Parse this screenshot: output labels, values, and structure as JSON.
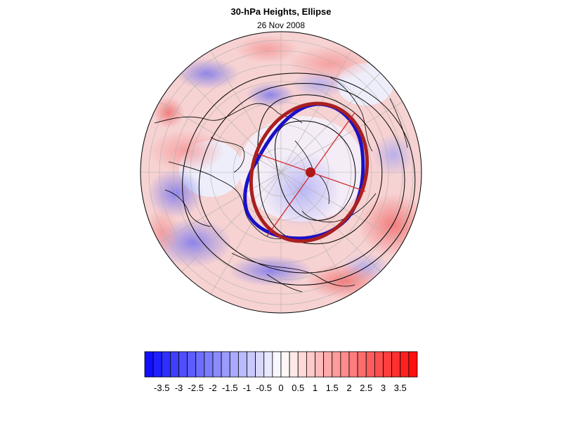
{
  "header": {
    "title": "30-hPa Heights, Ellipse",
    "date": "26 Nov 2008"
  },
  "colorbar": {
    "min": -4,
    "max": 4,
    "step": 0.25,
    "tick_labels": [
      "-3.5",
      "-3",
      "-2.5",
      "-2",
      "-1.5",
      "-1",
      "-0.5",
      "0",
      "0.5",
      "1",
      "1.5",
      "2",
      "2.5",
      "3",
      "3.5"
    ],
    "colors": {
      "negative_end": "#1010ff",
      "neutral": "#ffffff",
      "positive_end": "#ff1010"
    }
  },
  "map": {
    "projection": "north-polar-orthographic",
    "colors": {
      "blue_contour": "#1a10c8",
      "red_ellipse": "#a82020",
      "red_lines": "#d02020",
      "grid": "#b0b0b0",
      "coast": "#000000"
    }
  }
}
